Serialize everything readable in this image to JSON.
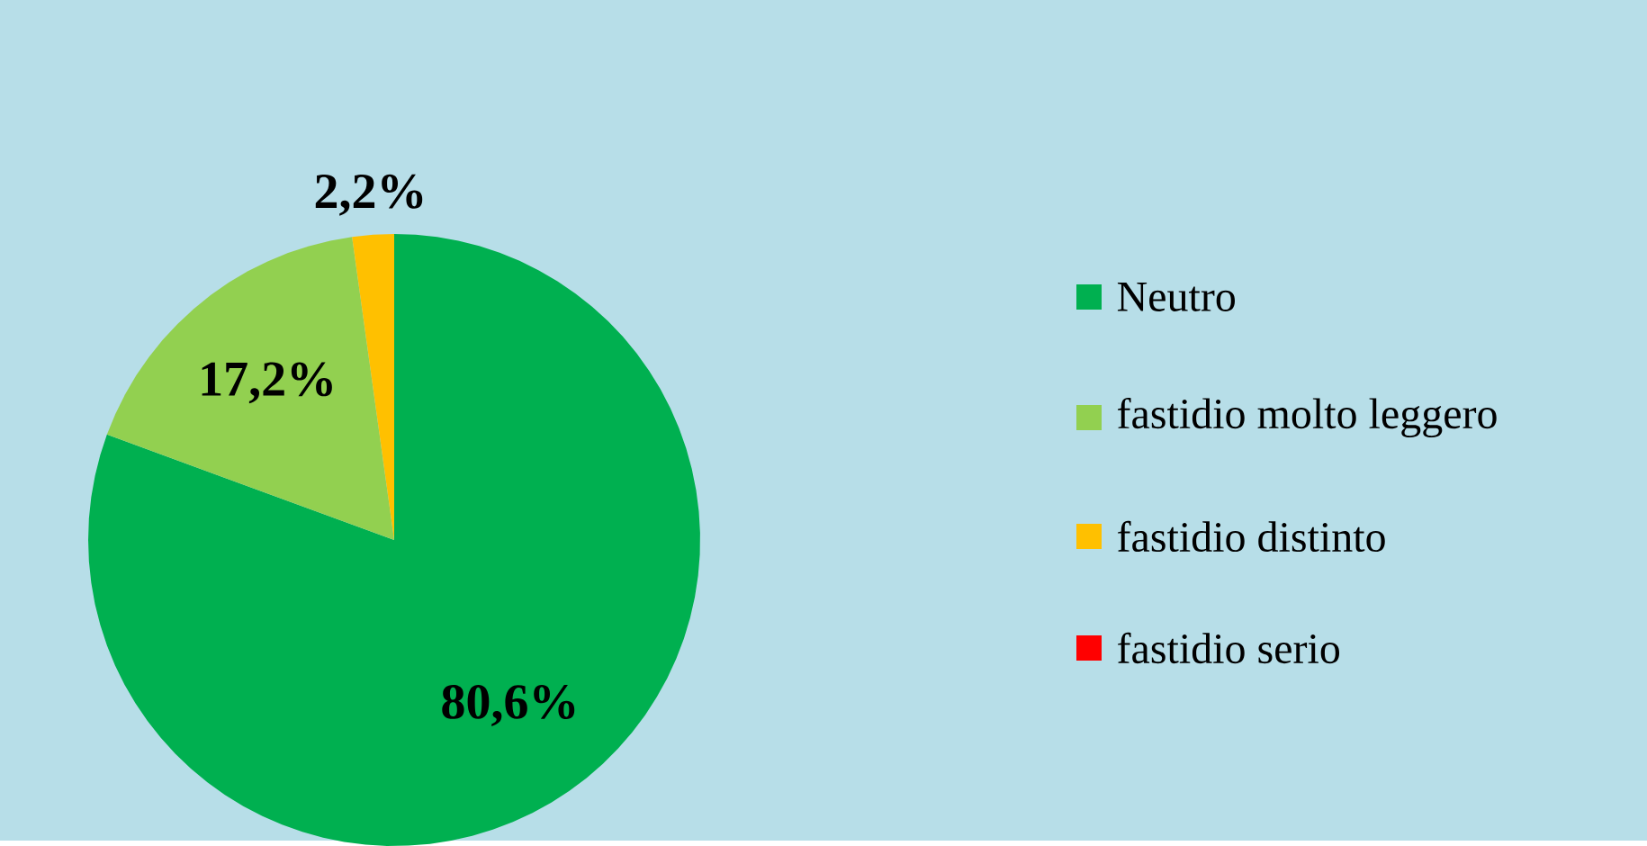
{
  "chart_data": {
    "type": "pie",
    "categories": [
      "Neutro",
      "fastidio  molto leggero",
      "fastidio  distinto",
      "fastidio serio"
    ],
    "values": [
      80.6,
      17.2,
      2.2,
      0
    ],
    "colors": [
      "#00b050",
      "#92d050",
      "#ffc000",
      "#ff0000"
    ],
    "value_labels": [
      "80,6%",
      "17,2%",
      "2,2%",
      null
    ],
    "legend": "right"
  }
}
